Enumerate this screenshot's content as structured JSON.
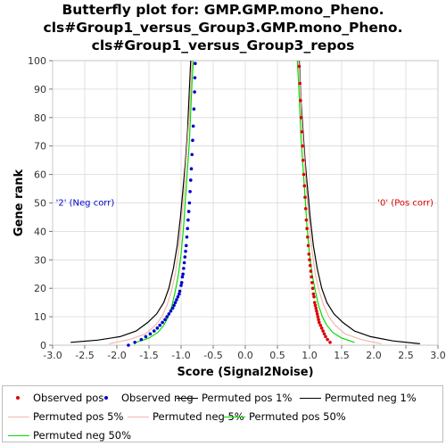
{
  "title_lines": [
    "Butterfly plot for: GMP.GMP.mono_Pheno.",
    "cls#Group1_versus_Group3.GMP.mono_Pheno.",
    "cls#Group1_versus_Group3_repos"
  ],
  "chart_data": {
    "type": "scatter",
    "xlabel": "Score (Signal2Noise)",
    "ylabel": "Gene rank",
    "xlim": [
      -3.0,
      3.0
    ],
    "ylim": [
      0,
      100
    ],
    "xticks": [
      "-3.0",
      "-2.5",
      "-2.0",
      "-1.5",
      "-1.0",
      "-0.5",
      "0.0",
      "0.5",
      "1.0",
      "1.5",
      "2.0",
      "2.5",
      "3.0"
    ],
    "yticks": [
      "0",
      "10",
      "20",
      "30",
      "40",
      "50",
      "60",
      "70",
      "80",
      "90",
      "100"
    ],
    "grid": true,
    "annotations": {
      "neg": "'2' (Neg corr)",
      "pos": "'0' (Pos corr)"
    },
    "series": [
      {
        "name": "Observed pos",
        "kind": "points",
        "color": "#dd0000",
        "points": [
          [
            1.32,
            1
          ],
          [
            1.28,
            2
          ],
          [
            1.25,
            3
          ],
          [
            1.23,
            4
          ],
          [
            1.21,
            5
          ],
          [
            1.19,
            6
          ],
          [
            1.17,
            7
          ],
          [
            1.15,
            8
          ],
          [
            1.14,
            9
          ],
          [
            1.13,
            10
          ],
          [
            1.12,
            11
          ],
          [
            1.11,
            12
          ],
          [
            1.1,
            13
          ],
          [
            1.09,
            14
          ],
          [
            1.08,
            15
          ],
          [
            1.07,
            17
          ],
          [
            1.06,
            18
          ],
          [
            1.05,
            20
          ],
          [
            1.04,
            22
          ],
          [
            1.03,
            24
          ],
          [
            1.02,
            26
          ],
          [
            1.01,
            28
          ],
          [
            1.0,
            30
          ],
          [
            0.99,
            32
          ],
          [
            0.98,
            35
          ],
          [
            0.97,
            38
          ],
          [
            0.96,
            41
          ],
          [
            0.95,
            44
          ],
          [
            0.94,
            48
          ],
          [
            0.93,
            52
          ],
          [
            0.92,
            56
          ],
          [
            0.91,
            60
          ],
          [
            0.9,
            65
          ],
          [
            0.89,
            70
          ],
          [
            0.88,
            75
          ],
          [
            0.87,
            80
          ],
          [
            0.86,
            86
          ],
          [
            0.85,
            92
          ],
          [
            0.84,
            98
          ]
        ]
      },
      {
        "name": "Observed neg",
        "kind": "points",
        "color": "#0000cc",
        "points": [
          [
            -1.82,
            0
          ],
          [
            -1.72,
            1
          ],
          [
            -1.62,
            2
          ],
          [
            -1.55,
            3
          ],
          [
            -1.48,
            4
          ],
          [
            -1.42,
            5
          ],
          [
            -1.37,
            6
          ],
          [
            -1.33,
            7
          ],
          [
            -1.29,
            8
          ],
          [
            -1.25,
            9
          ],
          [
            -1.22,
            10
          ],
          [
            -1.19,
            11
          ],
          [
            -1.16,
            12
          ],
          [
            -1.13,
            13
          ],
          [
            -1.11,
            14
          ],
          [
            -1.09,
            15
          ],
          [
            -1.07,
            16
          ],
          [
            -1.05,
            17
          ],
          [
            -1.03,
            18
          ],
          [
            -1.02,
            19
          ],
          [
            -1.0,
            21
          ],
          [
            -0.99,
            22
          ],
          [
            -0.98,
            24
          ],
          [
            -0.97,
            25
          ],
          [
            -0.96,
            27
          ],
          [
            -0.95,
            29
          ],
          [
            -0.94,
            31
          ],
          [
            -0.93,
            33
          ],
          [
            -0.92,
            35
          ],
          [
            -0.91,
            38
          ],
          [
            -0.9,
            41
          ],
          [
            -0.89,
            44
          ],
          [
            -0.88,
            47
          ],
          [
            -0.87,
            50
          ],
          [
            -0.86,
            54
          ],
          [
            -0.85,
            58
          ],
          [
            -0.84,
            62
          ],
          [
            -0.83,
            67
          ],
          [
            -0.82,
            72
          ],
          [
            -0.81,
            77
          ],
          [
            -0.8,
            83
          ],
          [
            -0.79,
            89
          ],
          [
            -0.785,
            94
          ],
          [
            -0.78,
            99
          ]
        ]
      },
      {
        "name": "Permuted pos 1%",
        "kind": "line",
        "color": "#000000",
        "points": [
          [
            2.72,
            0.5
          ],
          [
            2.3,
            1.5
          ],
          [
            1.95,
            3
          ],
          [
            1.7,
            5
          ],
          [
            1.52,
            8
          ],
          [
            1.38,
            11
          ],
          [
            1.27,
            15
          ],
          [
            1.19,
            20
          ],
          [
            1.12,
            27
          ],
          [
            1.06,
            35
          ],
          [
            1.01,
            45
          ],
          [
            0.97,
            55
          ],
          [
            0.93,
            65
          ],
          [
            0.9,
            75
          ],
          [
            0.87,
            85
          ],
          [
            0.84,
            100
          ]
        ]
      },
      {
        "name": "Permuted neg 1%",
        "kind": "line",
        "color": "#000000",
        "points": [
          [
            -2.72,
            1
          ],
          [
            -2.3,
            1.8
          ],
          [
            -1.95,
            3
          ],
          [
            -1.7,
            5
          ],
          [
            -1.52,
            8
          ],
          [
            -1.38,
            11
          ],
          [
            -1.27,
            15
          ],
          [
            -1.19,
            20
          ],
          [
            -1.12,
            27
          ],
          [
            -1.06,
            35
          ],
          [
            -1.01,
            45
          ],
          [
            -0.97,
            55
          ],
          [
            -0.93,
            65
          ],
          [
            -0.9,
            75
          ],
          [
            -0.88,
            85
          ],
          [
            -0.85,
            100
          ]
        ]
      },
      {
        "name": "Permuted pos 5%",
        "kind": "line",
        "color": "#f4b6aa",
        "points": [
          [
            2.12,
            0.5
          ],
          [
            1.8,
            2
          ],
          [
            1.55,
            4
          ],
          [
            1.4,
            7
          ],
          [
            1.3,
            10
          ],
          [
            1.22,
            14
          ],
          [
            1.15,
            19
          ],
          [
            1.09,
            25
          ],
          [
            1.04,
            33
          ],
          [
            1.0,
            42
          ],
          [
            0.96,
            52
          ],
          [
            0.93,
            62
          ],
          [
            0.9,
            72
          ],
          [
            0.87,
            82
          ],
          [
            0.85,
            92
          ],
          [
            0.83,
            100
          ]
        ]
      },
      {
        "name": "Permuted neg 5%",
        "kind": "line",
        "color": "#f4b6aa",
        "points": [
          [
            -2.12,
            0.5
          ],
          [
            -1.8,
            2
          ],
          [
            -1.55,
            4
          ],
          [
            -1.4,
            7
          ],
          [
            -1.3,
            10
          ],
          [
            -1.22,
            14
          ],
          [
            -1.15,
            19
          ],
          [
            -1.09,
            25
          ],
          [
            -1.04,
            33
          ],
          [
            -1.0,
            42
          ],
          [
            -0.96,
            52
          ],
          [
            -0.93,
            62
          ],
          [
            -0.9,
            72
          ],
          [
            -0.87,
            82
          ],
          [
            -0.85,
            92
          ],
          [
            -0.83,
            100
          ]
        ]
      },
      {
        "name": "Permuted pos 50%",
        "kind": "line",
        "color": "#00dd00",
        "points": [
          [
            1.7,
            1
          ],
          [
            1.5,
            2.5
          ],
          [
            1.36,
            4.5
          ],
          [
            1.27,
            7
          ],
          [
            1.2,
            10
          ],
          [
            1.14,
            14
          ],
          [
            1.09,
            19
          ],
          [
            1.04,
            25
          ],
          [
            1.0,
            32
          ],
          [
            0.96,
            42
          ],
          [
            0.93,
            52
          ],
          [
            0.9,
            62
          ],
          [
            0.87,
            72
          ],
          [
            0.85,
            82
          ],
          [
            0.83,
            92
          ],
          [
            0.81,
            100
          ]
        ]
      },
      {
        "name": "Permuted neg 50%",
        "kind": "line",
        "color": "#00dd00",
        "points": [
          [
            -1.7,
            1
          ],
          [
            -1.5,
            2.5
          ],
          [
            -1.36,
            4.5
          ],
          [
            -1.27,
            7
          ],
          [
            -1.2,
            10
          ],
          [
            -1.14,
            14
          ],
          [
            -1.09,
            19
          ],
          [
            -1.04,
            25
          ],
          [
            -1.0,
            32
          ],
          [
            -0.96,
            42
          ],
          [
            -0.93,
            52
          ],
          [
            -0.9,
            62
          ],
          [
            -0.87,
            72
          ],
          [
            -0.85,
            82
          ],
          [
            -0.83,
            92
          ],
          [
            -0.81,
            100
          ]
        ]
      }
    ]
  },
  "legend": [
    {
      "label": "Observed pos",
      "kind": "dot",
      "color": "#dd0000"
    },
    {
      "label": "Observed neg",
      "kind": "dot",
      "color": "#0000cc"
    },
    {
      "label": "Permuted pos 1%",
      "kind": "line",
      "color": "#000000"
    },
    {
      "label": "Permuted neg 1%",
      "kind": "line",
      "color": "#000000"
    },
    {
      "label": "Permuted pos 5%",
      "kind": "line",
      "color": "#f4b6aa"
    },
    {
      "label": "Permuted neg 5%",
      "kind": "line",
      "color": "#f4b6aa"
    },
    {
      "label": "Permuted pos 50%",
      "kind": "line",
      "color": "#00dd00"
    },
    {
      "label": "Permuted neg 50%",
      "kind": "line",
      "color": "#00dd00"
    }
  ]
}
